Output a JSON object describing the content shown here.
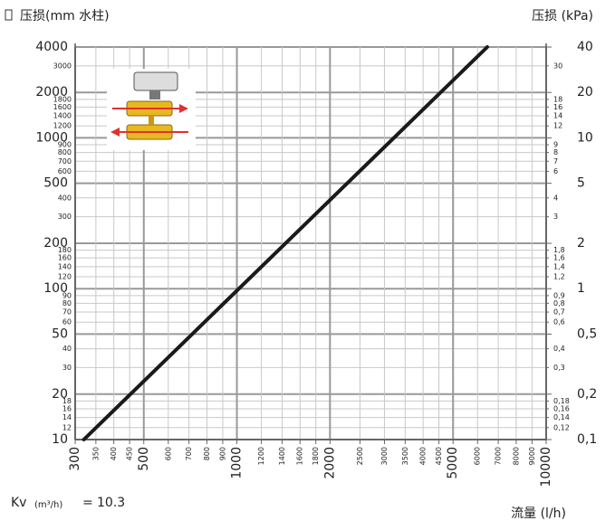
{
  "chart_data": {
    "type": "line",
    "y_label": "压损(mm 水柱)",
    "y2_label": "压损 (kPa)",
    "x_label": "流量 (l/h)",
    "kv": {
      "symbol": "Kv",
      "unit": "(m³/h)",
      "sign": "=",
      "value": 10.3
    },
    "log_x": true,
    "log_y": true,
    "grid": true,
    "xlim": [
      300,
      10000
    ],
    "xticks": [
      300,
      500,
      1000,
      2000,
      5000,
      10000
    ],
    "xticks_minor": [
      350,
      400,
      450,
      600,
      700,
      800,
      900,
      1200,
      1400,
      1600,
      1800,
      2500,
      3000,
      3500,
      4000,
      4500,
      6000,
      7000,
      8000,
      9000
    ],
    "ylim": [
      10,
      4000
    ],
    "yticks": [
      10,
      20,
      50,
      100,
      200,
      500,
      1000,
      2000,
      4000
    ],
    "yticks_minor": [
      12,
      14,
      16,
      18,
      30,
      40,
      60,
      70,
      80,
      90,
      120,
      140,
      160,
      180,
      300,
      400,
      600,
      700,
      800,
      900,
      1200,
      1400,
      1600,
      1800,
      3000
    ],
    "y2lim": [
      0.1,
      40
    ],
    "y2ticks": [
      {
        "value": 0.1,
        "label": "0,1"
      },
      {
        "value": 0.2,
        "label": "0,2"
      },
      {
        "value": 0.5,
        "label": "0,5"
      },
      1,
      2,
      5,
      10,
      20,
      40
    ],
    "y2ticks_minor": [
      {
        "value": 0.12,
        "label": "0,12"
      },
      {
        "value": 0.14,
        "label": "0,14"
      },
      {
        "value": 0.16,
        "label": "0,16"
      },
      {
        "value": 0.18,
        "label": "0,18"
      },
      {
        "value": 0.3,
        "label": "0,3"
      },
      {
        "value": 0.4,
        "label": "0,4"
      },
      {
        "value": 0.6,
        "label": "0,6"
      },
      {
        "value": 0.7,
        "label": "0,7"
      },
      {
        "value": 0.8,
        "label": "0,8"
      },
      {
        "value": 0.9,
        "label": "0,9"
      },
      {
        "value": 1.2,
        "label": "1,2"
      },
      {
        "value": 1.4,
        "label": "1,4"
      },
      {
        "value": 1.6,
        "label": "1,6"
      },
      {
        "value": 1.8,
        "label": "1,8"
      },
      3,
      4,
      6,
      7,
      8,
      9,
      12,
      14,
      16,
      18,
      30
    ],
    "x": [
      320,
      6450
    ],
    "values": [
      10,
      4000
    ],
    "color": "#1a1a1a"
  }
}
